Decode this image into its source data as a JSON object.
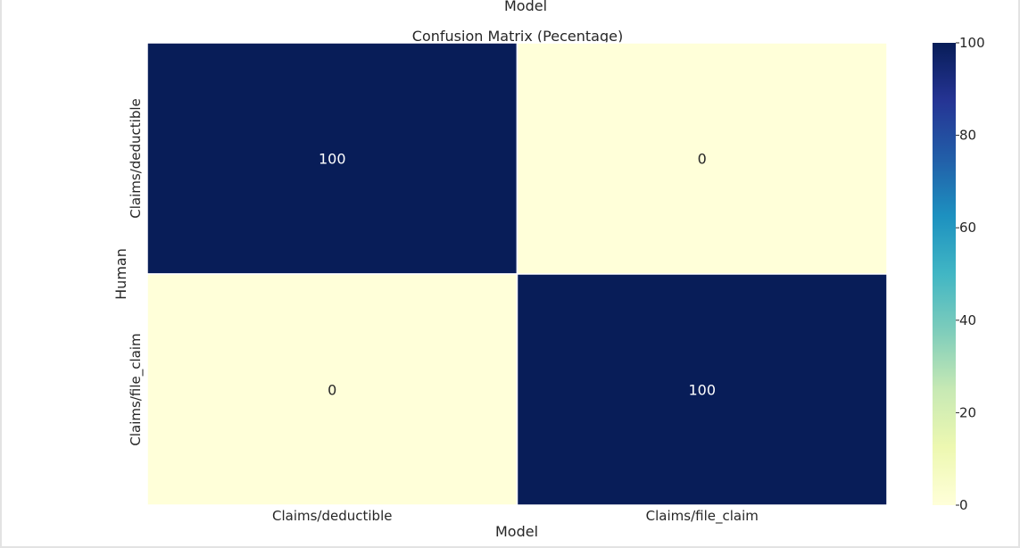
{
  "chart_data": {
    "type": "heatmap",
    "top_label": "Model",
    "title": "Confusion Matrix (Pecentage)",
    "xlabel": "Model",
    "ylabel": "Human",
    "x_categories": [
      "Claims/deductible",
      "Claims/file_claim"
    ],
    "y_categories": [
      "Claims/deductible",
      "Claims/file_claim"
    ],
    "values": [
      [
        100,
        0
      ],
      [
        0,
        100
      ]
    ],
    "cell_labels": [
      [
        "100",
        "0"
      ],
      [
        "0",
        "100"
      ]
    ],
    "colorbar": {
      "min": 0,
      "max": 100,
      "ticks": [
        0,
        20,
        40,
        60,
        80,
        100
      ],
      "colormap": "YlGnBu",
      "colors": [
        "#ffffd9",
        "#edf8b1",
        "#c7e9b4",
        "#7fcdbb",
        "#41b6c4",
        "#1d91c0",
        "#225ea8",
        "#253494",
        "#081d58"
      ]
    },
    "grid": false
  }
}
